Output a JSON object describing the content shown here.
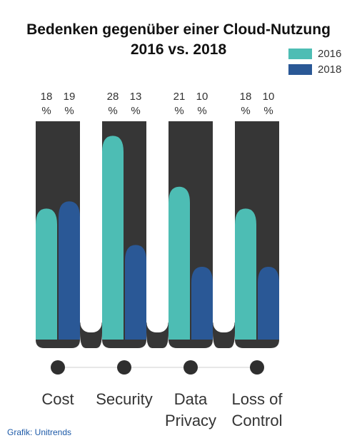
{
  "header": {
    "title_line1": "Bedenken gegenüber einer Cloud-Nutzung",
    "title_line2": "2016 vs. 2018"
  },
  "colors": {
    "s2016": "#4dbdb4",
    "s2018": "#2a5896",
    "track": "#363636",
    "dot": "#2f2f2f"
  },
  "chart_data": {
    "type": "bar",
    "categories": [
      "Cost",
      "Security",
      "Data Privacy",
      "Loss of Control"
    ],
    "category_lines": [
      [
        "Cost"
      ],
      [
        "Security"
      ],
      [
        "Data",
        "Privacy"
      ],
      [
        "Loss of",
        "Control"
      ]
    ],
    "series": [
      {
        "name": "2016",
        "values": [
          18,
          28,
          21,
          18
        ]
      },
      {
        "name": "2018",
        "values": [
          19,
          13,
          10,
          10
        ]
      }
    ],
    "ylim": [
      0,
      30
    ],
    "unit": "%",
    "legend": "top-right"
  },
  "footer": {
    "credit": "Grafik: Unitrends"
  }
}
